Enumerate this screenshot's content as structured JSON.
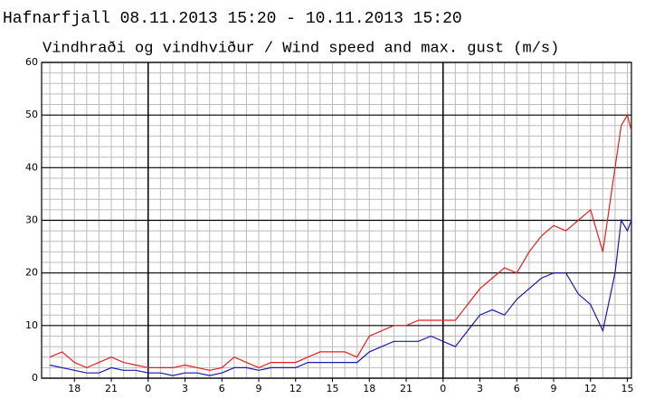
{
  "chart_data": {
    "type": "line",
    "title": "Hafnarfjall 08.11.2013 15:20 - 10.11.2013 15:20",
    "subtitle": "Vindhraði og vindhviður / Wind speed and max. gust (m/s)",
    "x": [
      16,
      17,
      18,
      19,
      20,
      21,
      22,
      23,
      24,
      25,
      26,
      27,
      28,
      29,
      30,
      31,
      32,
      33,
      34,
      35,
      36,
      37,
      38,
      39,
      40,
      41,
      42,
      43,
      44,
      45,
      46,
      47,
      48,
      49,
      50,
      51,
      52,
      53,
      54,
      55,
      56,
      57,
      58,
      59,
      60,
      61,
      62,
      62.5,
      63,
      63.33
    ],
    "series": [
      {
        "color": "#e02020",
        "values": [
          4,
          5,
          3,
          2,
          3,
          4,
          3,
          2.5,
          2,
          2,
          2,
          2.5,
          2,
          1.5,
          2,
          4,
          3,
          2,
          3,
          3,
          3,
          4,
          5,
          5,
          5,
          4,
          8,
          9,
          10,
          10,
          11,
          11,
          11,
          11,
          14,
          17,
          19,
          21,
          20,
          24,
          27,
          29,
          28,
          30,
          32,
          24,
          40,
          48,
          50,
          47
        ]
      },
      {
        "color": "#1a1aa8",
        "values": [
          2.5,
          2,
          1.5,
          1,
          1,
          2,
          1.5,
          1.5,
          1,
          1,
          0.5,
          1,
          1,
          0.5,
          1,
          2,
          2,
          1.5,
          2,
          2,
          2,
          3,
          3,
          3,
          3,
          3,
          5,
          6,
          7,
          7,
          7,
          8,
          7,
          6,
          9,
          12,
          13,
          12,
          15,
          17,
          19,
          20,
          20,
          16,
          14,
          9,
          20,
          30,
          28,
          30
        ]
      }
    ],
    "xlim": [
      15.33,
      63.33
    ],
    "xticks": [
      18,
      21,
      {
        "value": 24,
        "label": "0"
      },
      {
        "value": 27,
        "label": "3"
      },
      {
        "value": 30,
        "label": "6"
      },
      {
        "value": 33,
        "label": "9"
      },
      {
        "value": 36,
        "label": "12"
      },
      {
        "value": 39,
        "label": "15"
      },
      {
        "value": 42,
        "label": "18"
      },
      {
        "value": 45,
        "label": "21"
      },
      {
        "value": 48,
        "label": "0"
      },
      {
        "value": 51,
        "label": "3"
      },
      {
        "value": 54,
        "label": "6"
      },
      {
        "value": 57,
        "label": "9"
      },
      {
        "value": 60,
        "label": "12"
      },
      {
        "value": 63,
        "label": "15"
      }
    ],
    "x_minor_ticks": [
      16,
      17,
      18,
      19,
      20,
      21,
      22,
      23,
      24,
      25,
      26,
      27,
      28,
      29,
      30,
      31,
      32,
      33,
      34,
      35,
      36,
      37,
      38,
      39,
      40,
      41,
      42,
      43,
      44,
      45,
      46,
      47,
      48,
      49,
      50,
      51,
      52,
      53,
      54,
      55,
      56,
      57,
      58,
      59,
      60,
      61,
      62,
      63
    ],
    "day_boundaries": [
      24,
      48
    ],
    "ylim": [
      0,
      60
    ],
    "yticks": [
      0,
      10,
      20,
      30,
      40,
      50,
      60
    ],
    "y_minor_ticks": [
      2,
      4,
      6,
      8,
      12,
      14,
      16,
      18,
      22,
      24,
      26,
      28,
      32,
      34,
      36,
      38,
      42,
      44,
      46,
      48,
      52,
      54,
      56,
      58
    ],
    "grid": true
  }
}
